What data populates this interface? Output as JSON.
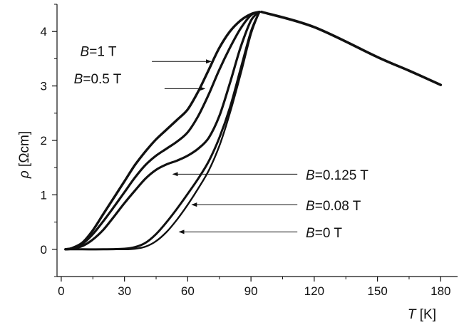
{
  "chart_data": {
    "type": "line",
    "xlabel": {
      "symbol": "T",
      "unit": " [K]"
    },
    "ylabel": {
      "symbol": "ρ",
      "unit": " [Ωcm]"
    },
    "xlim": [
      -2,
      188
    ],
    "ylim": [
      -0.5,
      4.5
    ],
    "xticks": [
      0,
      30,
      60,
      90,
      120,
      150,
      180
    ],
    "yticks": [
      0,
      1,
      2,
      3,
      4
    ],
    "grid": false,
    "legend": "none",
    "common_normal_state": [
      [
        95,
        4.36
      ],
      [
        120,
        4.08
      ],
      [
        150,
        3.53
      ],
      [
        165,
        3.28
      ],
      [
        180,
        3.02
      ]
    ],
    "series": [
      {
        "label": {
          "sym": "B",
          "rest": "=1 T"
        },
        "label_anchor": [
          9,
          3.55
        ],
        "arrow_from": [
          43,
          3.45
        ],
        "arrow_to": [
          71,
          3.45
        ],
        "points": [
          [
            2,
            0
          ],
          [
            5,
            0.02
          ],
          [
            10,
            0.12
          ],
          [
            15,
            0.35
          ],
          [
            20,
            0.65
          ],
          [
            25,
            0.95
          ],
          [
            30,
            1.25
          ],
          [
            35,
            1.55
          ],
          [
            40,
            1.8
          ],
          [
            45,
            2.02
          ],
          [
            50,
            2.2
          ],
          [
            55,
            2.38
          ],
          [
            60,
            2.57
          ],
          [
            65,
            2.9
          ],
          [
            70,
            3.3
          ],
          [
            75,
            3.7
          ],
          [
            80,
            4.0
          ],
          [
            85,
            4.2
          ],
          [
            90,
            4.32
          ],
          [
            94,
            4.36
          ]
        ]
      },
      {
        "label": {
          "sym": "B",
          "rest": "=0.5 T"
        },
        "label_anchor": [
          6,
          3.05
        ],
        "arrow_from": [
          49,
          2.95
        ],
        "arrow_to": [
          68,
          2.95
        ],
        "points": [
          [
            2,
            0
          ],
          [
            5,
            0.02
          ],
          [
            10,
            0.1
          ],
          [
            15,
            0.28
          ],
          [
            20,
            0.52
          ],
          [
            25,
            0.78
          ],
          [
            30,
            1.05
          ],
          [
            35,
            1.32
          ],
          [
            40,
            1.55
          ],
          [
            45,
            1.72
          ],
          [
            50,
            1.85
          ],
          [
            55,
            1.98
          ],
          [
            60,
            2.15
          ],
          [
            65,
            2.45
          ],
          [
            70,
            2.85
          ],
          [
            75,
            3.3
          ],
          [
            80,
            3.7
          ],
          [
            85,
            4.05
          ],
          [
            90,
            4.3
          ],
          [
            94,
            4.36
          ]
        ]
      },
      {
        "label": {
          "sym": "B",
          "rest": "=0.125 T"
        },
        "label_anchor": [
          116,
          1.28
        ],
        "arrow_from": [
          112,
          1.38
        ],
        "arrow_to": [
          53,
          1.38
        ],
        "points": [
          [
            2,
            0
          ],
          [
            5,
            0.01
          ],
          [
            10,
            0.06
          ],
          [
            15,
            0.18
          ],
          [
            20,
            0.36
          ],
          [
            25,
            0.6
          ],
          [
            30,
            0.85
          ],
          [
            35,
            1.08
          ],
          [
            40,
            1.3
          ],
          [
            45,
            1.46
          ],
          [
            50,
            1.56
          ],
          [
            55,
            1.63
          ],
          [
            60,
            1.72
          ],
          [
            65,
            1.85
          ],
          [
            70,
            2.05
          ],
          [
            75,
            2.45
          ],
          [
            80,
            3.05
          ],
          [
            85,
            3.7
          ],
          [
            90,
            4.2
          ],
          [
            94,
            4.36
          ]
        ]
      },
      {
        "label": {
          "sym": "B",
          "rest": "=0.08 T"
        },
        "label_anchor": [
          116,
          0.72
        ],
        "arrow_from": [
          112,
          0.82
        ],
        "arrow_to": [
          62,
          0.82
        ],
        "points": [
          [
            2,
            0
          ],
          [
            10,
            0
          ],
          [
            20,
            0
          ],
          [
            30,
            0.01
          ],
          [
            35,
            0.04
          ],
          [
            40,
            0.12
          ],
          [
            45,
            0.28
          ],
          [
            50,
            0.5
          ],
          [
            55,
            0.75
          ],
          [
            60,
            1.02
          ],
          [
            65,
            1.3
          ],
          [
            70,
            1.62
          ],
          [
            75,
            2.05
          ],
          [
            80,
            2.6
          ],
          [
            85,
            3.3
          ],
          [
            90,
            4.0
          ],
          [
            94,
            4.36
          ]
        ]
      },
      {
        "label": {
          "sym": "B",
          "rest": "=0 T"
        },
        "label_anchor": [
          116,
          0.22
        ],
        "arrow_from": [
          112,
          0.32
        ],
        "arrow_to": [
          56,
          0.32
        ],
        "points": [
          [
            2,
            0
          ],
          [
            10,
            0
          ],
          [
            20,
            0
          ],
          [
            30,
            0
          ],
          [
            35,
            0.01
          ],
          [
            40,
            0.05
          ],
          [
            45,
            0.15
          ],
          [
            50,
            0.32
          ],
          [
            55,
            0.55
          ],
          [
            60,
            0.82
          ],
          [
            65,
            1.12
          ],
          [
            70,
            1.45
          ],
          [
            75,
            1.9
          ],
          [
            80,
            2.5
          ],
          [
            85,
            3.2
          ],
          [
            90,
            3.95
          ],
          [
            94,
            4.36
          ]
        ]
      }
    ]
  }
}
